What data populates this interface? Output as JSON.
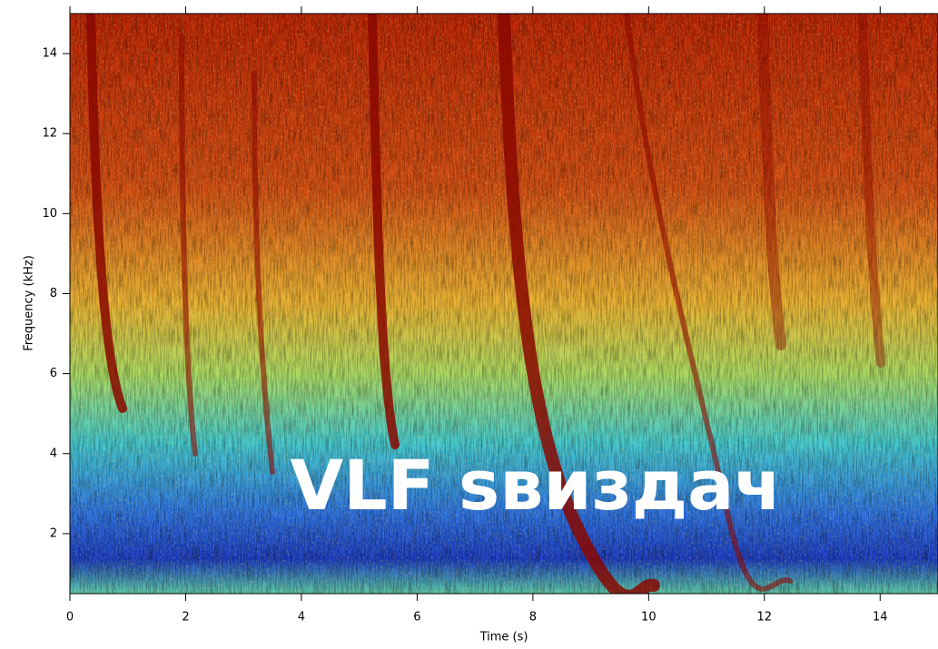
{
  "chart_data": {
    "type": "spectrogram",
    "annotation": "VLF sвиздач",
    "x_label": "Time (s)",
    "y_label": "Frequency (kHz)",
    "xlim": [
      0,
      15
    ],
    "xticks": [
      0,
      2,
      4,
      6,
      8,
      10,
      12,
      14
    ],
    "ylim": [
      0.5,
      15
    ],
    "yticks": [
      2,
      4,
      6,
      8,
      10,
      12,
      14
    ]
  }
}
